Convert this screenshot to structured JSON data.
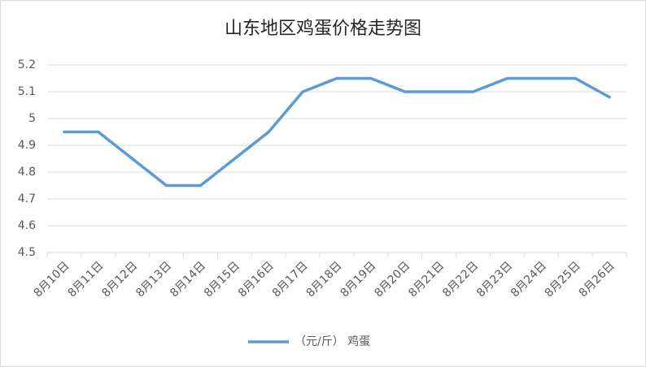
{
  "chart_data": {
    "type": "line",
    "title": "山东地区鸡蛋价格走势图",
    "categories": [
      "8月10日",
      "8月11日",
      "8月12日",
      "8月13日",
      "8月14日",
      "8月15日",
      "8月16日",
      "8月17日",
      "8月18日",
      "8月19日",
      "8月20日",
      "8月21日",
      "8月22日",
      "8月23日",
      "8月24日",
      "8月25日",
      "8月26日"
    ],
    "series": [
      {
        "name": "（元/斤） 鸡蛋",
        "color": "#5b9bd5",
        "values": [
          4.95,
          4.95,
          4.85,
          4.75,
          4.75,
          4.85,
          4.95,
          5.1,
          5.15,
          5.15,
          5.1,
          5.1,
          5.1,
          5.15,
          5.15,
          5.15,
          5.08
        ]
      }
    ],
    "ylim": [
      4.5,
      5.2
    ],
    "yticks": [
      4.5,
      4.6,
      4.7,
      4.8,
      4.9,
      5,
      5.1,
      5.2
    ],
    "grid": true
  }
}
